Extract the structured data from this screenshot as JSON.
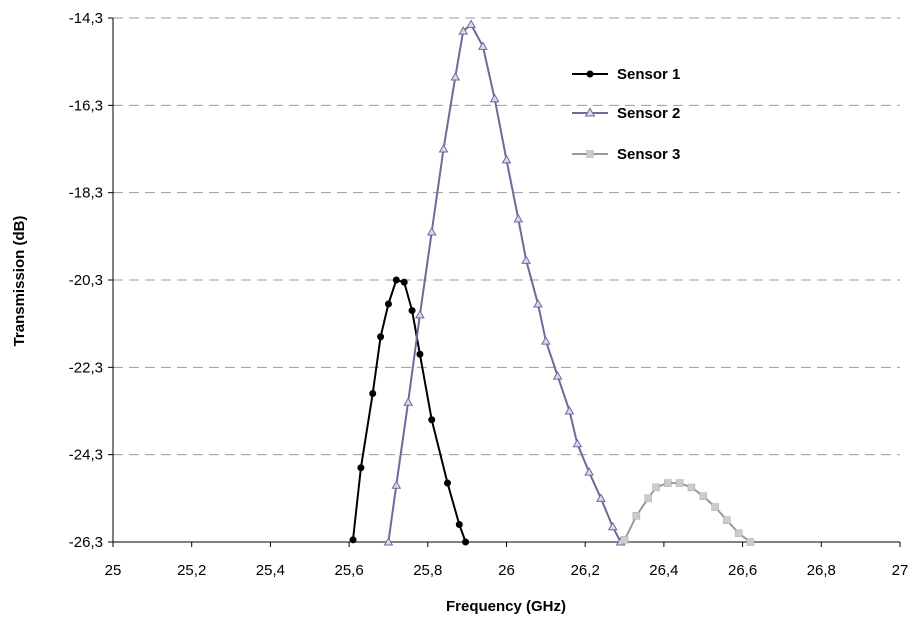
{
  "chart_data": {
    "type": "line",
    "xlabel": "Frequency (GHz)",
    "ylabel": "Transmission (dB)",
    "xlim": [
      25,
      27
    ],
    "ylim": [
      -26.3,
      -14.3
    ],
    "x_ticks": [
      "25",
      "25,2",
      "25,4",
      "25,6",
      "25,8",
      "26",
      "26,2",
      "26,4",
      "26,6",
      "26,8",
      "27"
    ],
    "y_ticks": [
      "-14,3",
      "-16,3",
      "-18,3",
      "-20,3",
      "-22,3",
      "-24,3",
      "-26,3"
    ],
    "grid": "horizontal dashed",
    "legend_position": "top-right",
    "series": [
      {
        "name": "Sensor 1",
        "color": "#000000",
        "marker": "circle",
        "points": [
          [
            25.61,
            -26.25
          ],
          [
            25.63,
            -24.6
          ],
          [
            25.66,
            -22.9
          ],
          [
            25.68,
            -21.6
          ],
          [
            25.7,
            -20.85
          ],
          [
            25.72,
            -20.3
          ],
          [
            25.74,
            -20.35
          ],
          [
            25.76,
            -21.0
          ],
          [
            25.78,
            -22.0
          ],
          [
            25.81,
            -23.5
          ],
          [
            25.85,
            -24.95
          ],
          [
            25.88,
            -25.9
          ],
          [
            25.896,
            -26.3
          ]
        ]
      },
      {
        "name": "Sensor 2",
        "color": "#6b6b9c",
        "marker": "triangle",
        "points": [
          [
            25.7,
            -26.3
          ],
          [
            25.72,
            -25.0
          ],
          [
            25.75,
            -23.1
          ],
          [
            25.78,
            -21.1
          ],
          [
            25.81,
            -19.2
          ],
          [
            25.84,
            -17.3
          ],
          [
            25.87,
            -15.65
          ],
          [
            25.89,
            -14.6
          ],
          [
            25.91,
            -14.45
          ],
          [
            25.94,
            -14.95
          ],
          [
            25.97,
            -16.15
          ],
          [
            26.0,
            -17.55
          ],
          [
            26.03,
            -18.9
          ],
          [
            26.05,
            -19.85
          ],
          [
            26.08,
            -20.85
          ],
          [
            26.1,
            -21.7
          ],
          [
            26.13,
            -22.5
          ],
          [
            26.16,
            -23.3
          ],
          [
            26.18,
            -24.05
          ],
          [
            26.21,
            -24.7
          ],
          [
            26.24,
            -25.3
          ],
          [
            26.27,
            -25.95
          ],
          [
            26.29,
            -26.3
          ]
        ]
      },
      {
        "name": "Sensor 3",
        "color": "#999999",
        "marker": "square",
        "points": [
          [
            26.3,
            -26.25
          ],
          [
            26.33,
            -25.7
          ],
          [
            26.36,
            -25.3
          ],
          [
            26.38,
            -25.05
          ],
          [
            26.41,
            -24.95
          ],
          [
            26.44,
            -24.95
          ],
          [
            26.47,
            -25.05
          ],
          [
            26.5,
            -25.25
          ],
          [
            26.53,
            -25.5
          ],
          [
            26.56,
            -25.8
          ],
          [
            26.59,
            -26.1
          ],
          [
            26.62,
            -26.3
          ]
        ]
      }
    ]
  }
}
